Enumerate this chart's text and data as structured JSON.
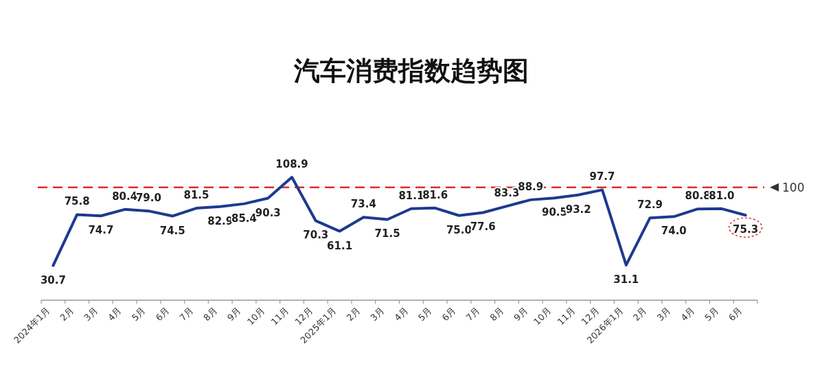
{
  "chart_data": {
    "type": "line",
    "title": "汽车消费指数趋势图",
    "categories": [
      "2024年1月",
      "2月",
      "3月",
      "4月",
      "5月",
      "6月",
      "7月",
      "8月",
      "9月",
      "10月",
      "11月",
      "12月",
      "2025年1月",
      "2月",
      "3月",
      "4月",
      "5月",
      "6月",
      "7月",
      "8月",
      "9月",
      "10月",
      "11月",
      "12月",
      "2026年1月",
      "2月",
      "3月",
      "4月",
      "5月",
      "6月"
    ],
    "values": [
      30.7,
      75.8,
      74.7,
      80.4,
      79.0,
      74.5,
      81.5,
      82.9,
      85.4,
      90.3,
      108.9,
      70.3,
      61.1,
      73.4,
      71.5,
      81.1,
      81.6,
      75.0,
      77.6,
      83.3,
      88.9,
      90.5,
      93.2,
      97.7,
      31.1,
      72.9,
      74.0,
      80.8,
      81.0,
      75.3
    ],
    "color": "#1c3a8f",
    "value_labels": [
      "30.7",
      "75.8",
      "74.7",
      "80.4",
      "79.0",
      "74.5",
      "81.5",
      "82.9",
      "85.4",
      "90.3",
      "108.9",
      "70.3",
      "61.1",
      "73.4",
      "71.5",
      "81.1",
      "81.6",
      "75.0",
      "77.6",
      "83.3",
      "88.9",
      "90.5",
      "93.2",
      "97.7",
      "31.1",
      "72.9",
      "74.0",
      "80.8",
      "81.0",
      "75.3"
    ],
    "ref_lines": [
      {
        "axis": "y",
        "value": 100,
        "label": "100",
        "color": "#d9302c",
        "line_style": "dashed"
      }
    ]
  }
}
